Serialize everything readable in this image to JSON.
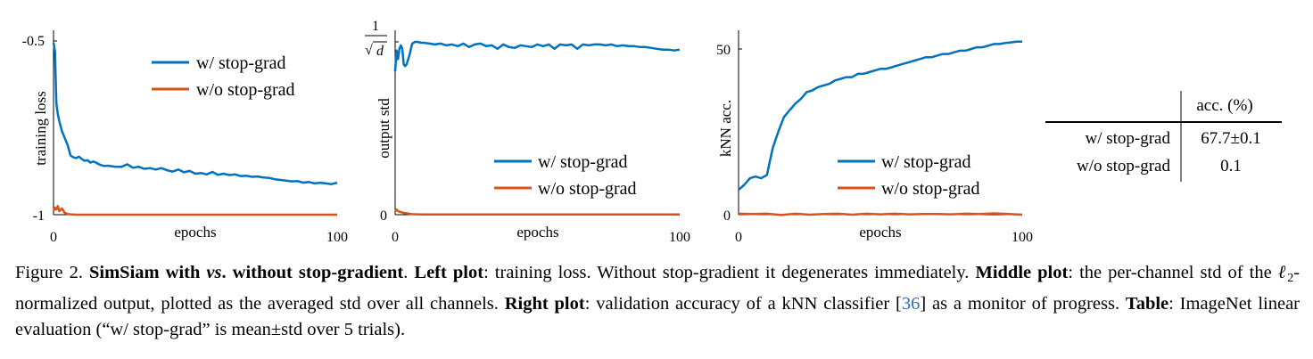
{
  "chart_data": [
    {
      "type": "line",
      "ylabel": "training loss",
      "xlabel": "epochs",
      "xlim": [
        0,
        100
      ],
      "ylim": [
        -1,
        -0.5
      ],
      "x_tick_labels": [
        "0",
        "100"
      ],
      "y_tick_labels": [
        "-0.5",
        "-1"
      ],
      "legend_position": "top-right",
      "series": [
        {
          "name": "w/ stop-grad",
          "color": "#0072bd",
          "x": [
            0,
            0.5,
            1,
            1.5,
            2,
            3,
            4,
            5,
            6,
            7,
            8,
            9,
            10,
            11,
            12,
            13,
            14,
            15,
            16,
            17,
            18,
            19,
            20,
            22,
            24,
            26,
            28,
            30,
            32,
            34,
            36,
            38,
            40,
            42,
            44,
            46,
            48,
            50,
            52,
            54,
            56,
            58,
            60,
            62,
            64,
            66,
            68,
            70,
            72,
            74,
            76,
            78,
            80,
            82,
            84,
            86,
            88,
            90,
            92,
            94,
            96,
            98,
            100
          ],
          "y": [
            -0.505,
            -0.53,
            -0.68,
            -0.71,
            -0.73,
            -0.76,
            -0.78,
            -0.8,
            -0.83,
            -0.835,
            -0.837,
            -0.833,
            -0.84,
            -0.845,
            -0.843,
            -0.85,
            -0.847,
            -0.85,
            -0.855,
            -0.858,
            -0.86,
            -0.859,
            -0.86,
            -0.862,
            -0.862,
            -0.855,
            -0.865,
            -0.862,
            -0.868,
            -0.866,
            -0.87,
            -0.866,
            -0.872,
            -0.876,
            -0.87,
            -0.878,
            -0.874,
            -0.882,
            -0.88,
            -0.884,
            -0.877,
            -0.885,
            -0.882,
            -0.886,
            -0.884,
            -0.889,
            -0.888,
            -0.891,
            -0.89,
            -0.893,
            -0.894,
            -0.898,
            -0.9,
            -0.902,
            -0.904,
            -0.903,
            -0.908,
            -0.906,
            -0.91,
            -0.908,
            -0.91,
            -0.912,
            -0.908
          ]
        },
        {
          "name": "w/o stop-grad",
          "color": "#d95319",
          "x": [
            0,
            0.5,
            1,
            1.5,
            2,
            3,
            4,
            5,
            6,
            8,
            10,
            20,
            30,
            40,
            50,
            60,
            70,
            80,
            90,
            100
          ],
          "y": [
            -0.99,
            -0.98,
            -0.985,
            -0.975,
            -0.99,
            -0.982,
            -0.995,
            -0.998,
            -0.999,
            -1,
            -1,
            -1,
            -1,
            -1,
            -1,
            -1,
            -1,
            -1,
            -1,
            -1
          ]
        }
      ]
    },
    {
      "type": "line",
      "ylabel": "output std",
      "xlabel": "epochs",
      "xlim": [
        0,
        100
      ],
      "ylim": [
        0,
        1
      ],
      "x_tick_labels": [
        "0",
        "100"
      ],
      "y_tick_labels": [
        "0"
      ],
      "y_top_tick_numerator": "1",
      "y_top_tick_denominator": "d",
      "legend_position": "bottom-right",
      "series": [
        {
          "name": "w/ stop-grad",
          "color": "#0072bd",
          "x": [
            0,
            0.5,
            1,
            1.5,
            2,
            2.5,
            3,
            3.5,
            4,
            5,
            6,
            7,
            8,
            9,
            10,
            12,
            14,
            16,
            18,
            20,
            22,
            24,
            26,
            28,
            30,
            32,
            34,
            36,
            38,
            40,
            42,
            44,
            46,
            48,
            50,
            52,
            54,
            56,
            58,
            60,
            62,
            64,
            66,
            68,
            70,
            72,
            74,
            76,
            78,
            80,
            82,
            84,
            86,
            88,
            90,
            92,
            94,
            96,
            98,
            100
          ],
          "y": [
            0.83,
            0.95,
            0.9,
            0.96,
            0.98,
            0.96,
            0.87,
            0.86,
            0.87,
            0.92,
            0.99,
            1.0,
            1.0,
            0.995,
            0.995,
            0.99,
            0.985,
            0.99,
            0.98,
            0.985,
            0.975,
            0.99,
            0.97,
            0.985,
            0.99,
            0.975,
            0.98,
            0.96,
            0.985,
            0.97,
            0.965,
            0.98,
            0.975,
            0.97,
            0.985,
            0.975,
            0.985,
            0.96,
            0.985,
            0.98,
            0.985,
            0.96,
            0.985,
            0.98,
            0.985,
            0.985,
            0.98,
            0.985,
            0.975,
            0.98,
            0.975,
            0.975,
            0.97,
            0.97,
            0.965,
            0.96,
            0.955,
            0.955,
            0.95,
            0.955
          ]
        },
        {
          "name": "w/o stop-grad",
          "color": "#d95319",
          "x": [
            0,
            0.5,
            1,
            2,
            3,
            4,
            5,
            6,
            8,
            10,
            20,
            40,
            60,
            80,
            100
          ],
          "y": [
            0.02,
            0.03,
            0.02,
            0.015,
            0.01,
            0.008,
            0.005,
            0.003,
            0.002,
            0.001,
            0.001,
            0.001,
            0.001,
            0.001,
            0.001
          ]
        }
      ]
    },
    {
      "type": "line",
      "ylabel": "kNN acc.",
      "xlabel": "epochs",
      "xlim": [
        0,
        100
      ],
      "ylim": [
        0,
        50
      ],
      "x_tick_labels": [
        "0",
        "100"
      ],
      "y_tick_labels": [
        "50",
        "0"
      ],
      "legend_position": "bottom-right",
      "series": [
        {
          "name": "w/ stop-grad",
          "color": "#0072bd",
          "x": [
            0,
            2,
            4,
            6,
            8,
            10,
            12,
            14,
            16,
            18,
            20,
            22,
            24,
            26,
            28,
            30,
            32,
            34,
            36,
            38,
            40,
            42,
            44,
            46,
            48,
            50,
            52,
            54,
            56,
            58,
            60,
            62,
            64,
            66,
            68,
            70,
            72,
            74,
            76,
            78,
            80,
            82,
            84,
            86,
            88,
            90,
            92,
            94,
            96,
            98,
            100
          ],
          "y": [
            7.5,
            9,
            11,
            11.5,
            11,
            12,
            20,
            25,
            29.5,
            31.5,
            33.5,
            35,
            37,
            37.5,
            38.5,
            39,
            39.5,
            40.5,
            41,
            41.5,
            41.5,
            42.5,
            42.5,
            43,
            43.5,
            44,
            44,
            44.5,
            45,
            45.5,
            46,
            46.5,
            47,
            47.5,
            47.5,
            48,
            48.5,
            48.5,
            49,
            49.5,
            49.5,
            50,
            50.5,
            50.5,
            51,
            51.5,
            51.5,
            51.8,
            52,
            52.2,
            52.2
          ]
        },
        {
          "name": "w/o stop-grad",
          "color": "#d95319",
          "x": [
            0,
            5,
            10,
            15,
            20,
            25,
            30,
            35,
            40,
            45,
            50,
            55,
            60,
            65,
            70,
            75,
            80,
            85,
            90,
            95,
            100
          ],
          "y": [
            0.3,
            0.2,
            0.3,
            -0.1,
            0.3,
            0.0,
            0.2,
            0.3,
            0.0,
            0.3,
            0.1,
            0.3,
            0.1,
            0.2,
            0.2,
            0.1,
            0.3,
            0.2,
            0.4,
            0.2,
            0.0
          ]
        }
      ]
    }
  ],
  "table": {
    "header": "acc. (%)",
    "rows": [
      {
        "label": "w/ stop-grad",
        "value": "67.7±0.1"
      },
      {
        "label": "w/o stop-grad",
        "value": "0.1"
      }
    ]
  },
  "caption": {
    "figure_label": "Figure 2.",
    "title_part1": "SimSiam with",
    "title_vs": "vs",
    "title_part2": ". without stop-gradient",
    "sep1": ".",
    "left_label": "Left plot",
    "left_text": ": training loss. Without stop-gradient it degenerates immediately.",
    "middle_label": "Middle plot",
    "middle_text_1": ": the per-channel std of the",
    "ell": "ℓ",
    "ell_sub": "2",
    "middle_text_2": "-normalized output, plotted as the averaged std over all channels.",
    "right_label": "Right plot",
    "right_text_1": ": validation accuracy of a kNN classifier [",
    "citation": "36",
    "right_text_2": "] as a monitor of progress.",
    "table_label": "Table",
    "table_text": ": ImageNet linear evaluation (“w/ stop-grad” is mean±std over 5 trials)."
  }
}
